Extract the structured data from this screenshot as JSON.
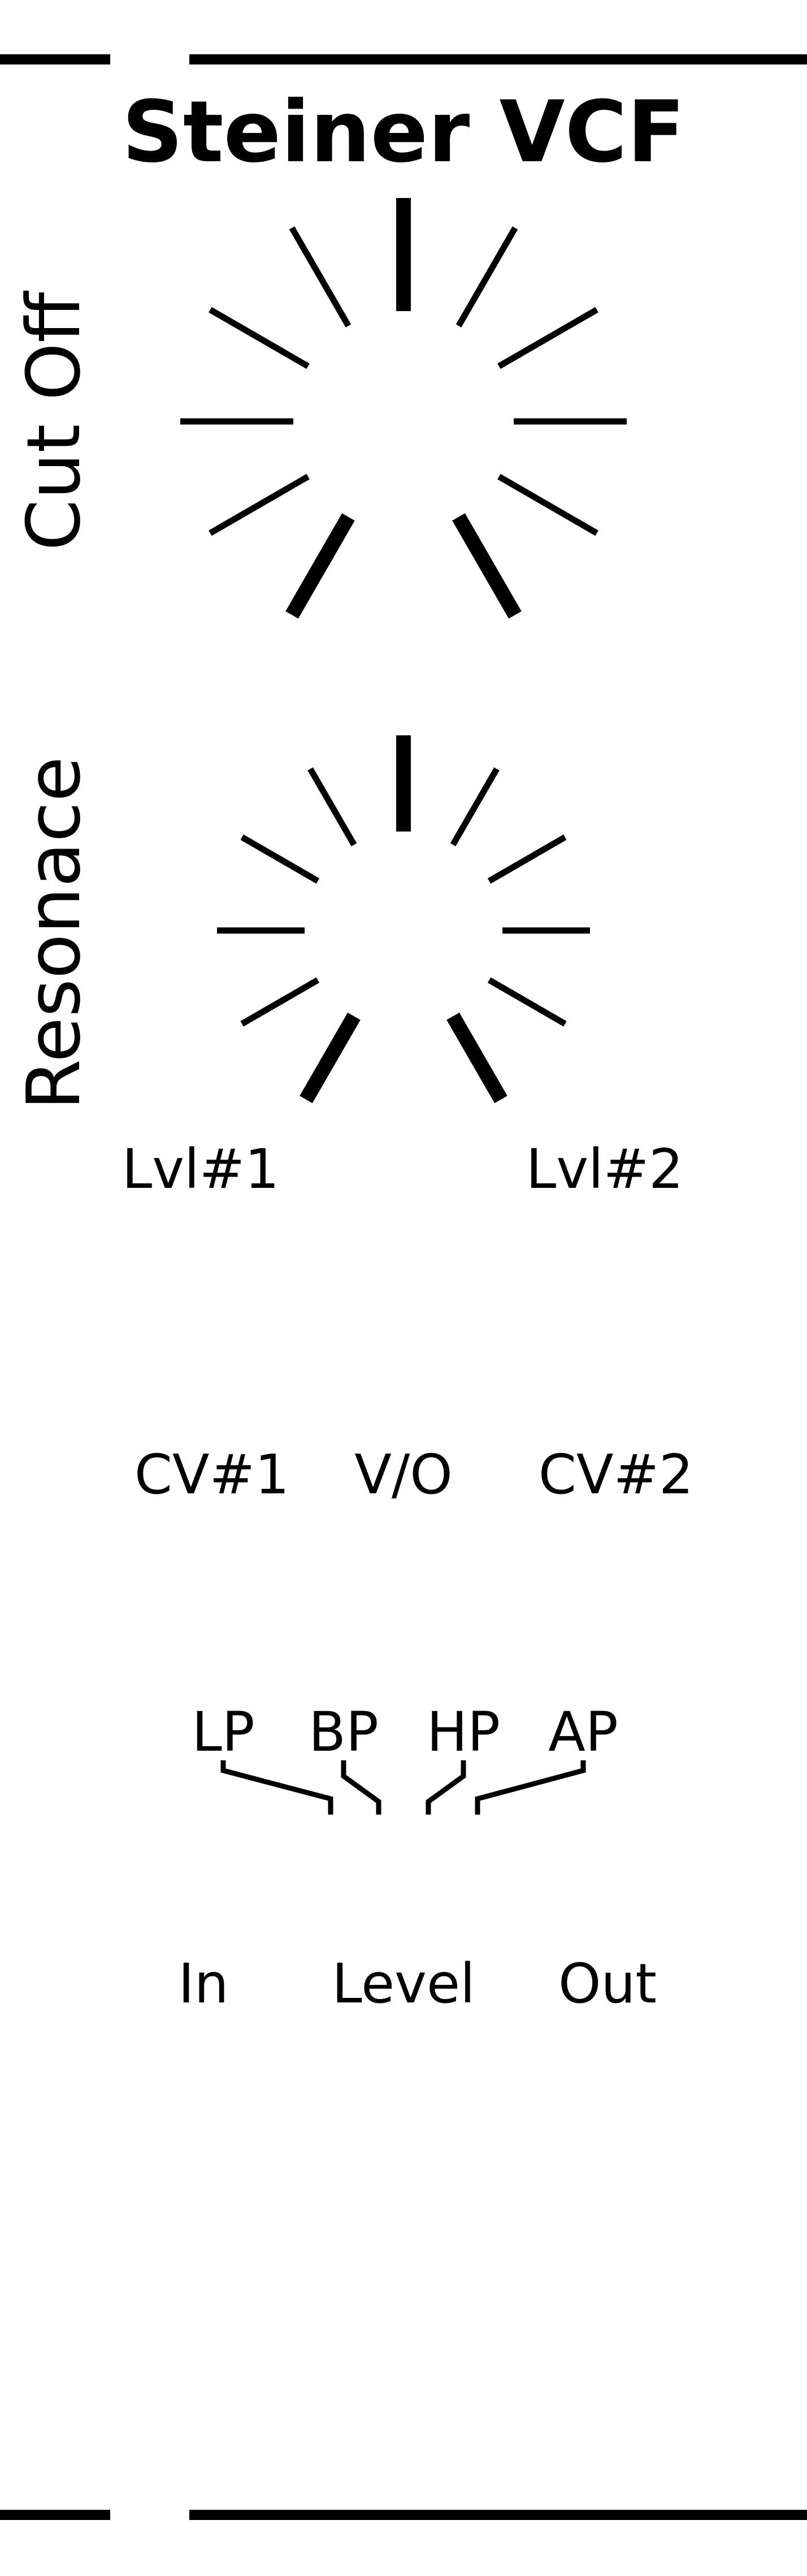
{
  "panel": {
    "title": "Steiner VCF",
    "ink_color": "#000000",
    "background_color": "#ffffff"
  },
  "knobs": {
    "cutoff_label": "Cut Off",
    "resonance_label": "Resonace"
  },
  "labels": {
    "lvl1": "Lvl#1",
    "lvl2": "Lvl#2",
    "cv1": "CV#1",
    "vo": "V/O",
    "cv2": "CV#2",
    "lp": "LP",
    "bp": "BP",
    "hp": "HP",
    "ap": "AP",
    "in": "In",
    "level": "Level",
    "out": "Out"
  }
}
